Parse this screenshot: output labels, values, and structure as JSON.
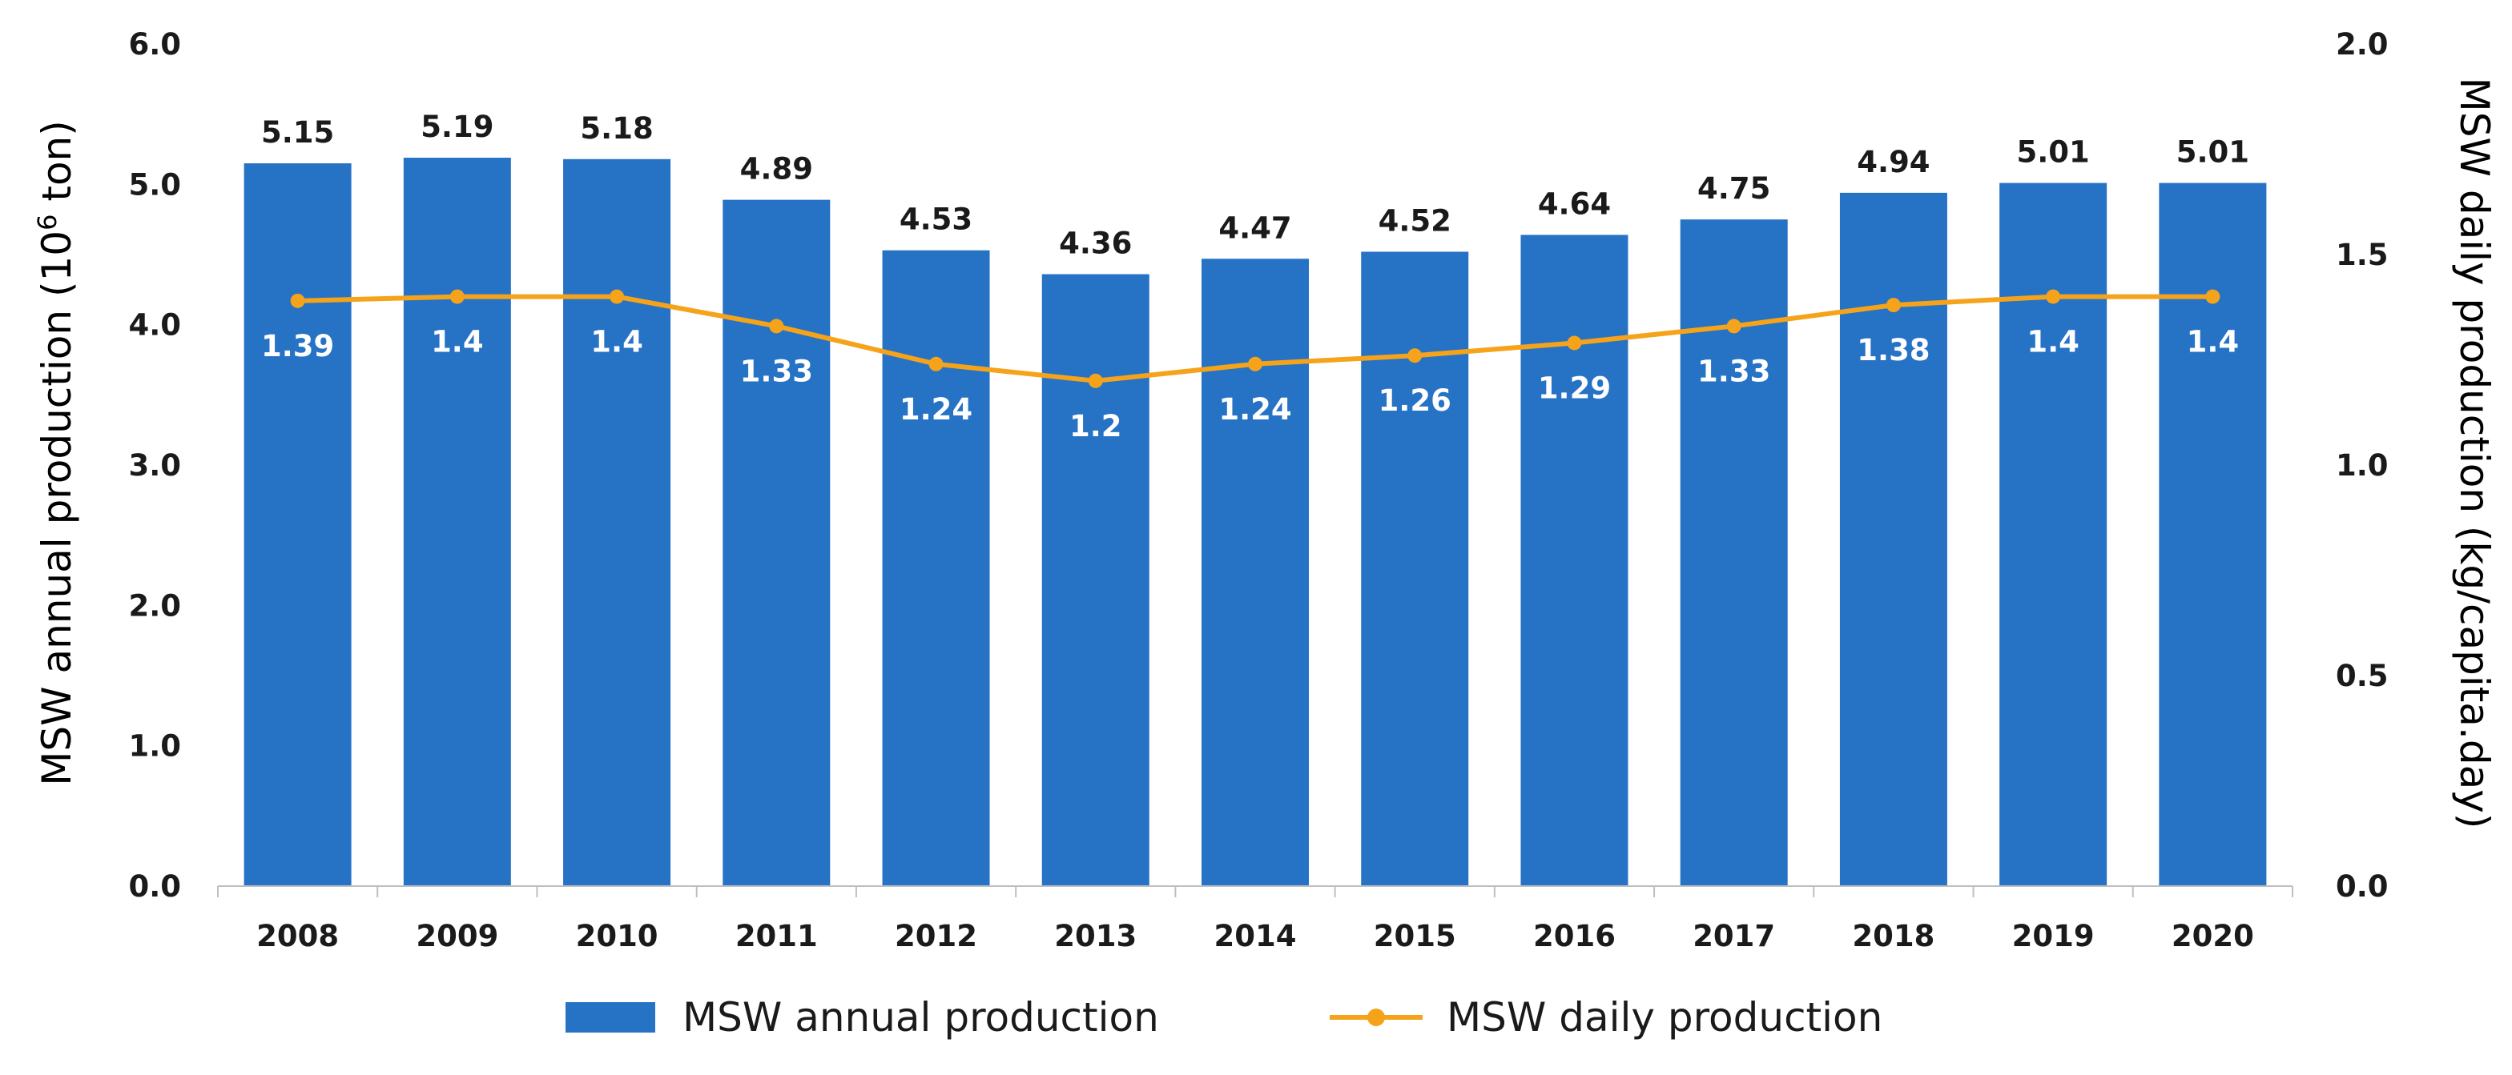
{
  "chart_data": {
    "type": "bar",
    "title": "",
    "categories": [
      "2008",
      "2009",
      "2010",
      "2011",
      "2012",
      "2013",
      "2014",
      "2015",
      "2016",
      "2017",
      "2018",
      "2019",
      "2020"
    ],
    "series": [
      {
        "name": "MSW annual production",
        "type": "bar",
        "axis": "left",
        "color": "#2672C5",
        "values": [
          5.15,
          5.19,
          5.18,
          4.89,
          4.53,
          4.36,
          4.47,
          4.52,
          4.64,
          4.75,
          4.94,
          5.01,
          5.01
        ],
        "labels": [
          "5.15",
          "5.19",
          "5.18",
          "4.89",
          "4.53",
          "4.36",
          "4.47",
          "4.52",
          "4.64",
          "4.75",
          "4.94",
          "5.01",
          "5.01"
        ]
      },
      {
        "name": "MSW daily production",
        "type": "line",
        "axis": "right",
        "color": "#F5A31A",
        "values": [
          1.39,
          1.4,
          1.4,
          1.33,
          1.24,
          1.2,
          1.24,
          1.26,
          1.29,
          1.33,
          1.38,
          1.4,
          1.4
        ],
        "labels": [
          "1.39",
          "1.4",
          "1.4",
          "1.33",
          "1.24",
          "1.2",
          "1.24",
          "1.26",
          "1.29",
          "1.33",
          "1.38",
          "1.4",
          "1.4"
        ]
      }
    ],
    "y_left": {
      "label_prefix": "MSW annual production (10",
      "label_sup": "6",
      "label_suffix": " ton)",
      "ylim": [
        0,
        6
      ],
      "ticks": [
        "0.0",
        "1.0",
        "2.0",
        "3.0",
        "4.0",
        "5.0",
        "6.0"
      ]
    },
    "y_right": {
      "label": "MSW daily production (kg/capita.day)",
      "ylim": [
        0,
        2
      ],
      "ticks": [
        "0.0",
        "0.5",
        "1.0",
        "1.5",
        "2.0"
      ]
    },
    "xlabel": "",
    "grid": false,
    "legend_position": "bottom-center"
  }
}
